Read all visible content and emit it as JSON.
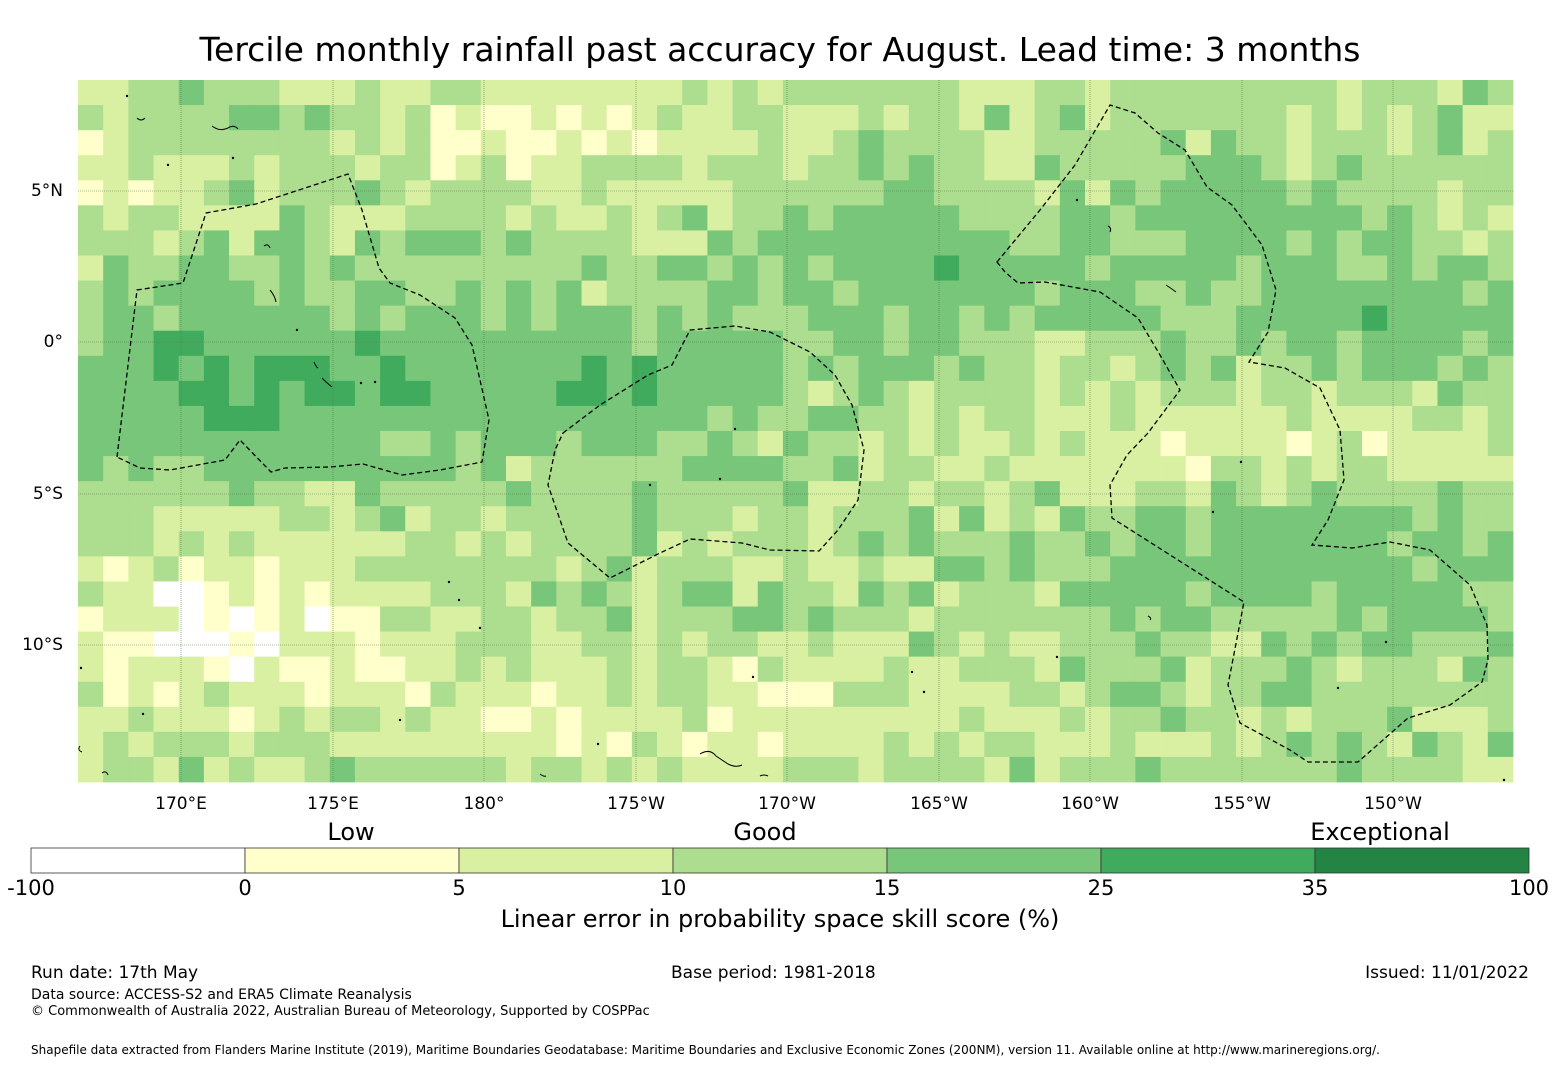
{
  "title": "Tercile monthly rainfall past accuracy for August. Lead time: 3 months",
  "map": {
    "lon_labels": [
      "170°E",
      "175°E",
      "180°",
      "175°W",
      "170°W",
      "165°W",
      "160°W",
      "155°W",
      "150°W"
    ],
    "lat_labels": [
      "5°N",
      "0°",
      "5°S",
      "10°S"
    ],
    "grid_note": "Gridded skill score field over the central/western tropical Pacific with dashed EEZ boundaries"
  },
  "legend": {
    "categories": [
      "Low",
      "Good",
      "Exceptional"
    ],
    "ticks": [
      "-100",
      "0",
      "5",
      "10",
      "15",
      "25",
      "35",
      "100"
    ],
    "colors": [
      "#ffffff",
      "#ffffcc",
      "#d9f0a3",
      "#addd8e",
      "#78c679",
      "#41ab5d",
      "#238443"
    ],
    "title": "Linear error in probability space skill score (%)"
  },
  "footer": {
    "run_date": "Run date: 17th May",
    "base_period": "Base period: 1981-2018",
    "issued": "Issued: 11/01/2022",
    "data_source": "Data source: ACCESS-S2 and ERA5 Climate Reanalysis",
    "copyright": "© Commonwealth of Australia 2022, Australian Bureau of Meteorology, Supported by COSPPac",
    "shapefile": "Shapefile data extracted from Flanders Marine Institute (2019), Maritime Boundaries Geodatabase: Maritime Boundaries and Exclusive Economic Zones (200NM), version 11. Available online at http://www.marineregions.org/."
  }
}
